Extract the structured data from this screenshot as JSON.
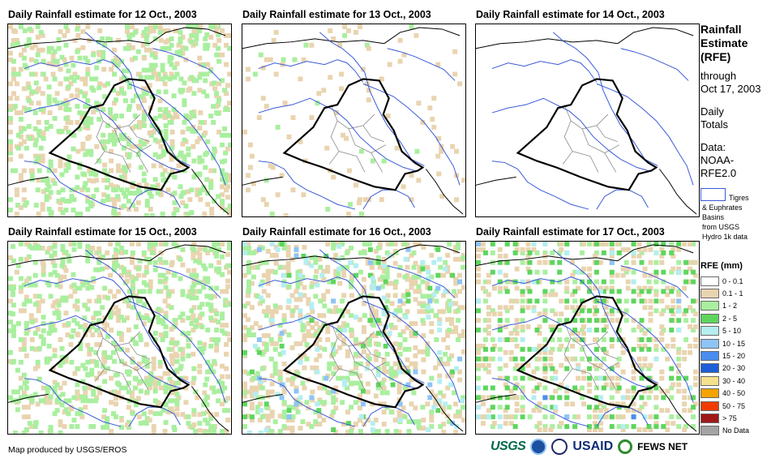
{
  "panels": [
    {
      "title": "Daily Rainfall estimate for 12 Oct., 2003",
      "rainfall": "light"
    },
    {
      "title": "Daily Rainfall estimate for 13 Oct., 2003",
      "rainfall": "minimal"
    },
    {
      "title": "Daily Rainfall estimate for 14 Oct., 2003",
      "rainfall": "none"
    },
    {
      "title": "Daily Rainfall estimate for 15 Oct., 2003",
      "rainfall": "light"
    },
    {
      "title": "Daily Rainfall estimate for 16 Oct., 2003",
      "rainfall": "moderate"
    },
    {
      "title": "Daily Rainfall estimate for 17 Oct., 2003",
      "rainfall": "widespread"
    }
  ],
  "side": {
    "title_line1": "Rainfall",
    "title_line2": "Estimate",
    "title_line3": "(RFE)",
    "through": "through",
    "date": "Oct 17, 2003",
    "daily": "Daily",
    "totals": "Totals",
    "data_label": "Data:",
    "data_source1": "NOAA-",
    "data_source2": "RFE2.0"
  },
  "basins": {
    "line1": "Tigres",
    "line2": "& Euphrates",
    "line3": "Basins",
    "line4": "from USGS",
    "line5": "Hydro 1k data"
  },
  "legend": {
    "title": "RFE (mm)",
    "items": [
      {
        "label": "0 - 0.1",
        "color": "#ffffff"
      },
      {
        "label": "0.1 - 1",
        "color": "#e9d4b0"
      },
      {
        "label": "1 - 2",
        "color": "#a9ef9f"
      },
      {
        "label": "2 - 5",
        "color": "#5ed65e"
      },
      {
        "label": "5 - 10",
        "color": "#b4eef0"
      },
      {
        "label": "10 - 15",
        "color": "#8ec4f5"
      },
      {
        "label": "15 - 20",
        "color": "#4a8df0"
      },
      {
        "label": "20 - 30",
        "color": "#1d5fd8"
      },
      {
        "label": "30 - 40",
        "color": "#f5e08c"
      },
      {
        "label": "40 - 50",
        "color": "#f5a300"
      },
      {
        "label": "50 - 75",
        "color": "#f03c00"
      },
      {
        "label": "> 75",
        "color": "#a01818"
      },
      {
        "label": "No Data",
        "color": "#a3a3a3"
      }
    ]
  },
  "footer": {
    "credit": "Map produced by USGS/EROS",
    "logos": [
      "USGS",
      "NOAA",
      "DHS",
      "USAID",
      "FEWS NET"
    ]
  },
  "colors": {
    "river": "#3a5ad6",
    "border": "#000000",
    "province": "#8a8a8a"
  }
}
